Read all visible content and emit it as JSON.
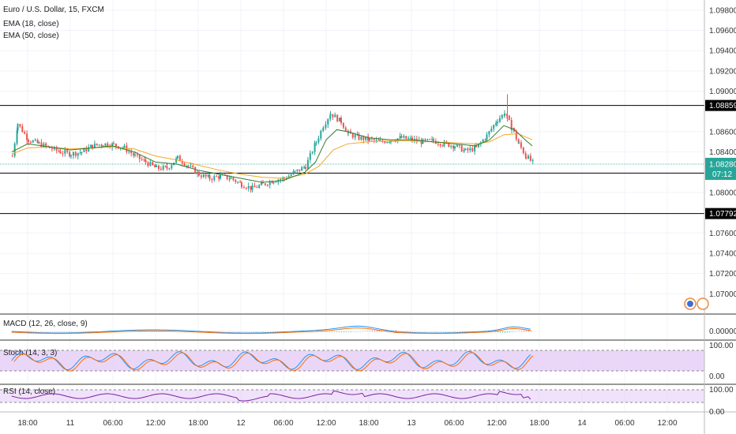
{
  "chart_data": {
    "type": "candlestick",
    "title": "Euro / U.S. Dollar, 15, FXCM",
    "indicators_main": [
      "EMA (18, close)",
      "EMA (50, close)"
    ],
    "ylim": [
      1.068,
      1.099
    ],
    "y_ticks": [
      "1.09800",
      "1.09600",
      "1.09400",
      "1.09200",
      "1.09000",
      "1.08600",
      "1.08400",
      "1.08000",
      "1.07600",
      "1.07400",
      "1.07200",
      "1.07000"
    ],
    "x_ticks": [
      "18:00",
      "11",
      "06:00",
      "12:00",
      "18:00",
      "12",
      "06:00",
      "12:00",
      "18:00",
      "13",
      "06:00",
      "12:00",
      "18:00",
      "14",
      "06:00",
      "12:00"
    ],
    "price_levels": [
      {
        "label": "1.08859",
        "value": 1.08859,
        "style": "black"
      },
      {
        "label": "1.08191",
        "value": 1.08191,
        "style": "black"
      },
      {
        "label": "1.07792",
        "value": 1.07792,
        "style": "black"
      }
    ],
    "last_price": {
      "label": "1.08280",
      "value": 1.0828,
      "countdown": "07:12"
    },
    "series_points": {
      "close": [
        [
          "10 15:45",
          1.0836
        ],
        [
          "10 16:30",
          1.0868
        ],
        [
          "10 18:00",
          1.0852
        ],
        [
          "10 19:30",
          1.0848
        ],
        [
          "10 21:00",
          1.0844
        ],
        [
          "10 22:30",
          1.084
        ],
        [
          "11 00:00",
          1.0838
        ],
        [
          "11 01:30",
          1.084
        ],
        [
          "11 03:00",
          1.0846
        ],
        [
          "11 04:30",
          1.0848
        ],
        [
          "11 06:00",
          1.0847
        ],
        [
          "11 07:30",
          1.0844
        ],
        [
          "11 09:00",
          1.0836
        ],
        [
          "11 10:30",
          1.083
        ],
        [
          "11 12:00",
          1.0824
        ],
        [
          "11 13:30",
          1.0824
        ],
        [
          "11 15:00",
          1.0834
        ],
        [
          "11 16:30",
          1.0826
        ],
        [
          "11 18:00",
          1.0818
        ],
        [
          "11 19:30",
          1.0814
        ],
        [
          "11 21:00",
          1.0816
        ],
        [
          "11 22:30",
          1.0814
        ],
        [
          "12 00:00",
          1.0808
        ],
        [
          "12 01:30",
          1.0804
        ],
        [
          "12 03:00",
          1.0808
        ],
        [
          "12 04:30",
          1.0812
        ],
        [
          "12 06:00",
          1.0814
        ],
        [
          "12 07:30",
          1.082
        ],
        [
          "12 09:00",
          1.0826
        ],
        [
          "12 10:30",
          1.085
        ],
        [
          "12 11:30",
          1.0866
        ],
        [
          "12 12:30",
          1.0878
        ],
        [
          "12 14:00",
          1.087
        ],
        [
          "12 15:00",
          1.0858
        ],
        [
          "12 16:30",
          1.0854
        ],
        [
          "12 18:00",
          1.0852
        ],
        [
          "12 19:30",
          1.085
        ],
        [
          "12 21:00",
          1.0852
        ],
        [
          "12 22:30",
          1.0854
        ],
        [
          "13 00:00",
          1.0852
        ],
        [
          "13 01:30",
          1.085
        ],
        [
          "13 03:00",
          1.0851
        ],
        [
          "13 04:30",
          1.0848
        ],
        [
          "13 06:00",
          1.0846
        ],
        [
          "13 07:30",
          1.0841
        ],
        [
          "13 09:00",
          1.0844
        ],
        [
          "13 10:30",
          1.0856
        ],
        [
          "13 12:00",
          1.0872
        ],
        [
          "13 13:00",
          1.0878
        ],
        [
          "13 14:00",
          1.0864
        ],
        [
          "13 15:00",
          1.0848
        ],
        [
          "13 16:00",
          1.0836
        ],
        [
          "13 17:00",
          1.0829
        ]
      ],
      "ema18": [
        [
          "10 15:45",
          1.084
        ],
        [
          "10 18:00",
          1.0848
        ],
        [
          "10 21:00",
          1.0845
        ],
        [
          "11 00:00",
          1.0842
        ],
        [
          "11 03:00",
          1.0844
        ],
        [
          "11 06:00",
          1.0846
        ],
        [
          "11 09:00",
          1.084
        ],
        [
          "11 12:00",
          1.083
        ],
        [
          "11 15:00",
          1.0828
        ],
        [
          "11 18:00",
          1.0822
        ],
        [
          "11 21:00",
          1.0818
        ],
        [
          "12 00:00",
          1.0814
        ],
        [
          "12 03:00",
          1.081
        ],
        [
          "12 06:00",
          1.0812
        ],
        [
          "12 09:00",
          1.082
        ],
        [
          "12 10:30",
          1.083
        ],
        [
          "12 12:00",
          1.0852
        ],
        [
          "12 13:30",
          1.0862
        ],
        [
          "12 15:00",
          1.086
        ],
        [
          "12 18:00",
          1.0854
        ],
        [
          "12 21:00",
          1.0852
        ],
        [
          "13 00:00",
          1.0852
        ],
        [
          "13 03:00",
          1.085
        ],
        [
          "13 06:00",
          1.0848
        ],
        [
          "13 09:00",
          1.0846
        ],
        [
          "13 11:00",
          1.0852
        ],
        [
          "13 13:00",
          1.0866
        ],
        [
          "13 14:30",
          1.0862
        ],
        [
          "13 16:00",
          1.0852
        ],
        [
          "13 17:00",
          1.0846
        ]
      ],
      "ema50": [
        [
          "10 15:45",
          1.0838
        ],
        [
          "10 18:00",
          1.0844
        ],
        [
          "10 21:00",
          1.0845
        ],
        [
          "11 00:00",
          1.0843
        ],
        [
          "11 03:00",
          1.0844
        ],
        [
          "11 06:00",
          1.0845
        ],
        [
          "11 09:00",
          1.0843
        ],
        [
          "11 12:00",
          1.0836
        ],
        [
          "11 15:00",
          1.0832
        ],
        [
          "11 18:00",
          1.0827
        ],
        [
          "11 21:00",
          1.0822
        ],
        [
          "12 00:00",
          1.0818
        ],
        [
          "12 03:00",
          1.0815
        ],
        [
          "12 06:00",
          1.0814
        ],
        [
          "12 09:00",
          1.0818
        ],
        [
          "12 11:00",
          1.0826
        ],
        [
          "12 13:00",
          1.0842
        ],
        [
          "12 15:00",
          1.0848
        ],
        [
          "12 18:00",
          1.085
        ],
        [
          "12 21:00",
          1.0851
        ],
        [
          "13 00:00",
          1.0851
        ],
        [
          "13 03:00",
          1.085
        ],
        [
          "13 06:00",
          1.0849
        ],
        [
          "13 09:00",
          1.0848
        ],
        [
          "13 11:00",
          1.085
        ],
        [
          "13 13:00",
          1.0857
        ],
        [
          "13 15:00",
          1.0858
        ],
        [
          "13 17:00",
          1.0852
        ]
      ],
      "high_spike": [
        "13 13:30",
        1.0897
      ]
    },
    "sub_panels": [
      {
        "name": "MACD (12, 26, close, 9)",
        "y_ticks": [
          "0.00000"
        ]
      },
      {
        "name": "Stoch (14, 3, 3)",
        "y_ticks": [
          "100.00",
          "0.00"
        ]
      },
      {
        "name": "RSI (14, close)",
        "y_ticks": [
          "100.00",
          "0.00"
        ]
      }
    ],
    "colors": {
      "up": "#26a69a",
      "down": "#ef5350",
      "ema18": "#2e7d32",
      "ema50": "#f5a623",
      "macd": "#2196f3",
      "signal": "#ff6d00",
      "stoch_k": "#2196f3",
      "stoch_d": "#ff6d00",
      "rsi": "#7b1fa2",
      "band": "#e1c6f5",
      "level": "#000000",
      "last": "#26a69a"
    }
  }
}
